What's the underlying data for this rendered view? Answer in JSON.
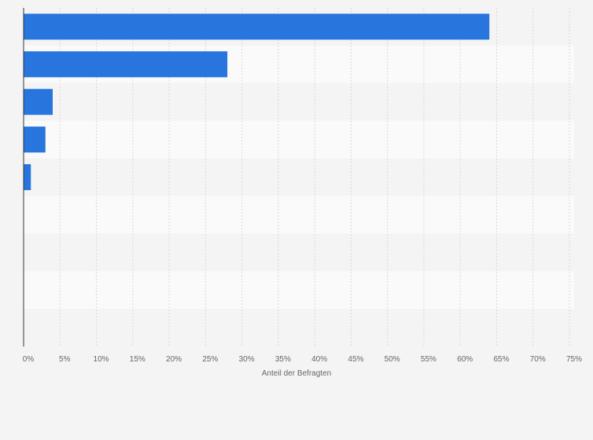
{
  "chart_data": {
    "type": "bar",
    "orientation": "horizontal",
    "title": "",
    "xlabel": "Anteil der Befragten",
    "ylabel": "",
    "categories": [
      "",
      "",
      "",
      "",
      "",
      "",
      "",
      "",
      ""
    ],
    "values": [
      64,
      28,
      4,
      3,
      1,
      0,
      0,
      0,
      0
    ],
    "xlim": [
      0,
      75
    ],
    "x_ticks": [
      0,
      5,
      10,
      15,
      20,
      25,
      30,
      35,
      40,
      45,
      50,
      55,
      60,
      65,
      70,
      75
    ],
    "tick_suffix": "%",
    "grid": "vertical dashed",
    "legend": "none",
    "colors": {
      "bar": "#2876dd",
      "background": "#f4f4f4",
      "band_light": "#fafafa",
      "band_dark": "#f4f4f4",
      "grid": "#d9d9d9",
      "axis": "#333333",
      "text": "#666666"
    }
  }
}
